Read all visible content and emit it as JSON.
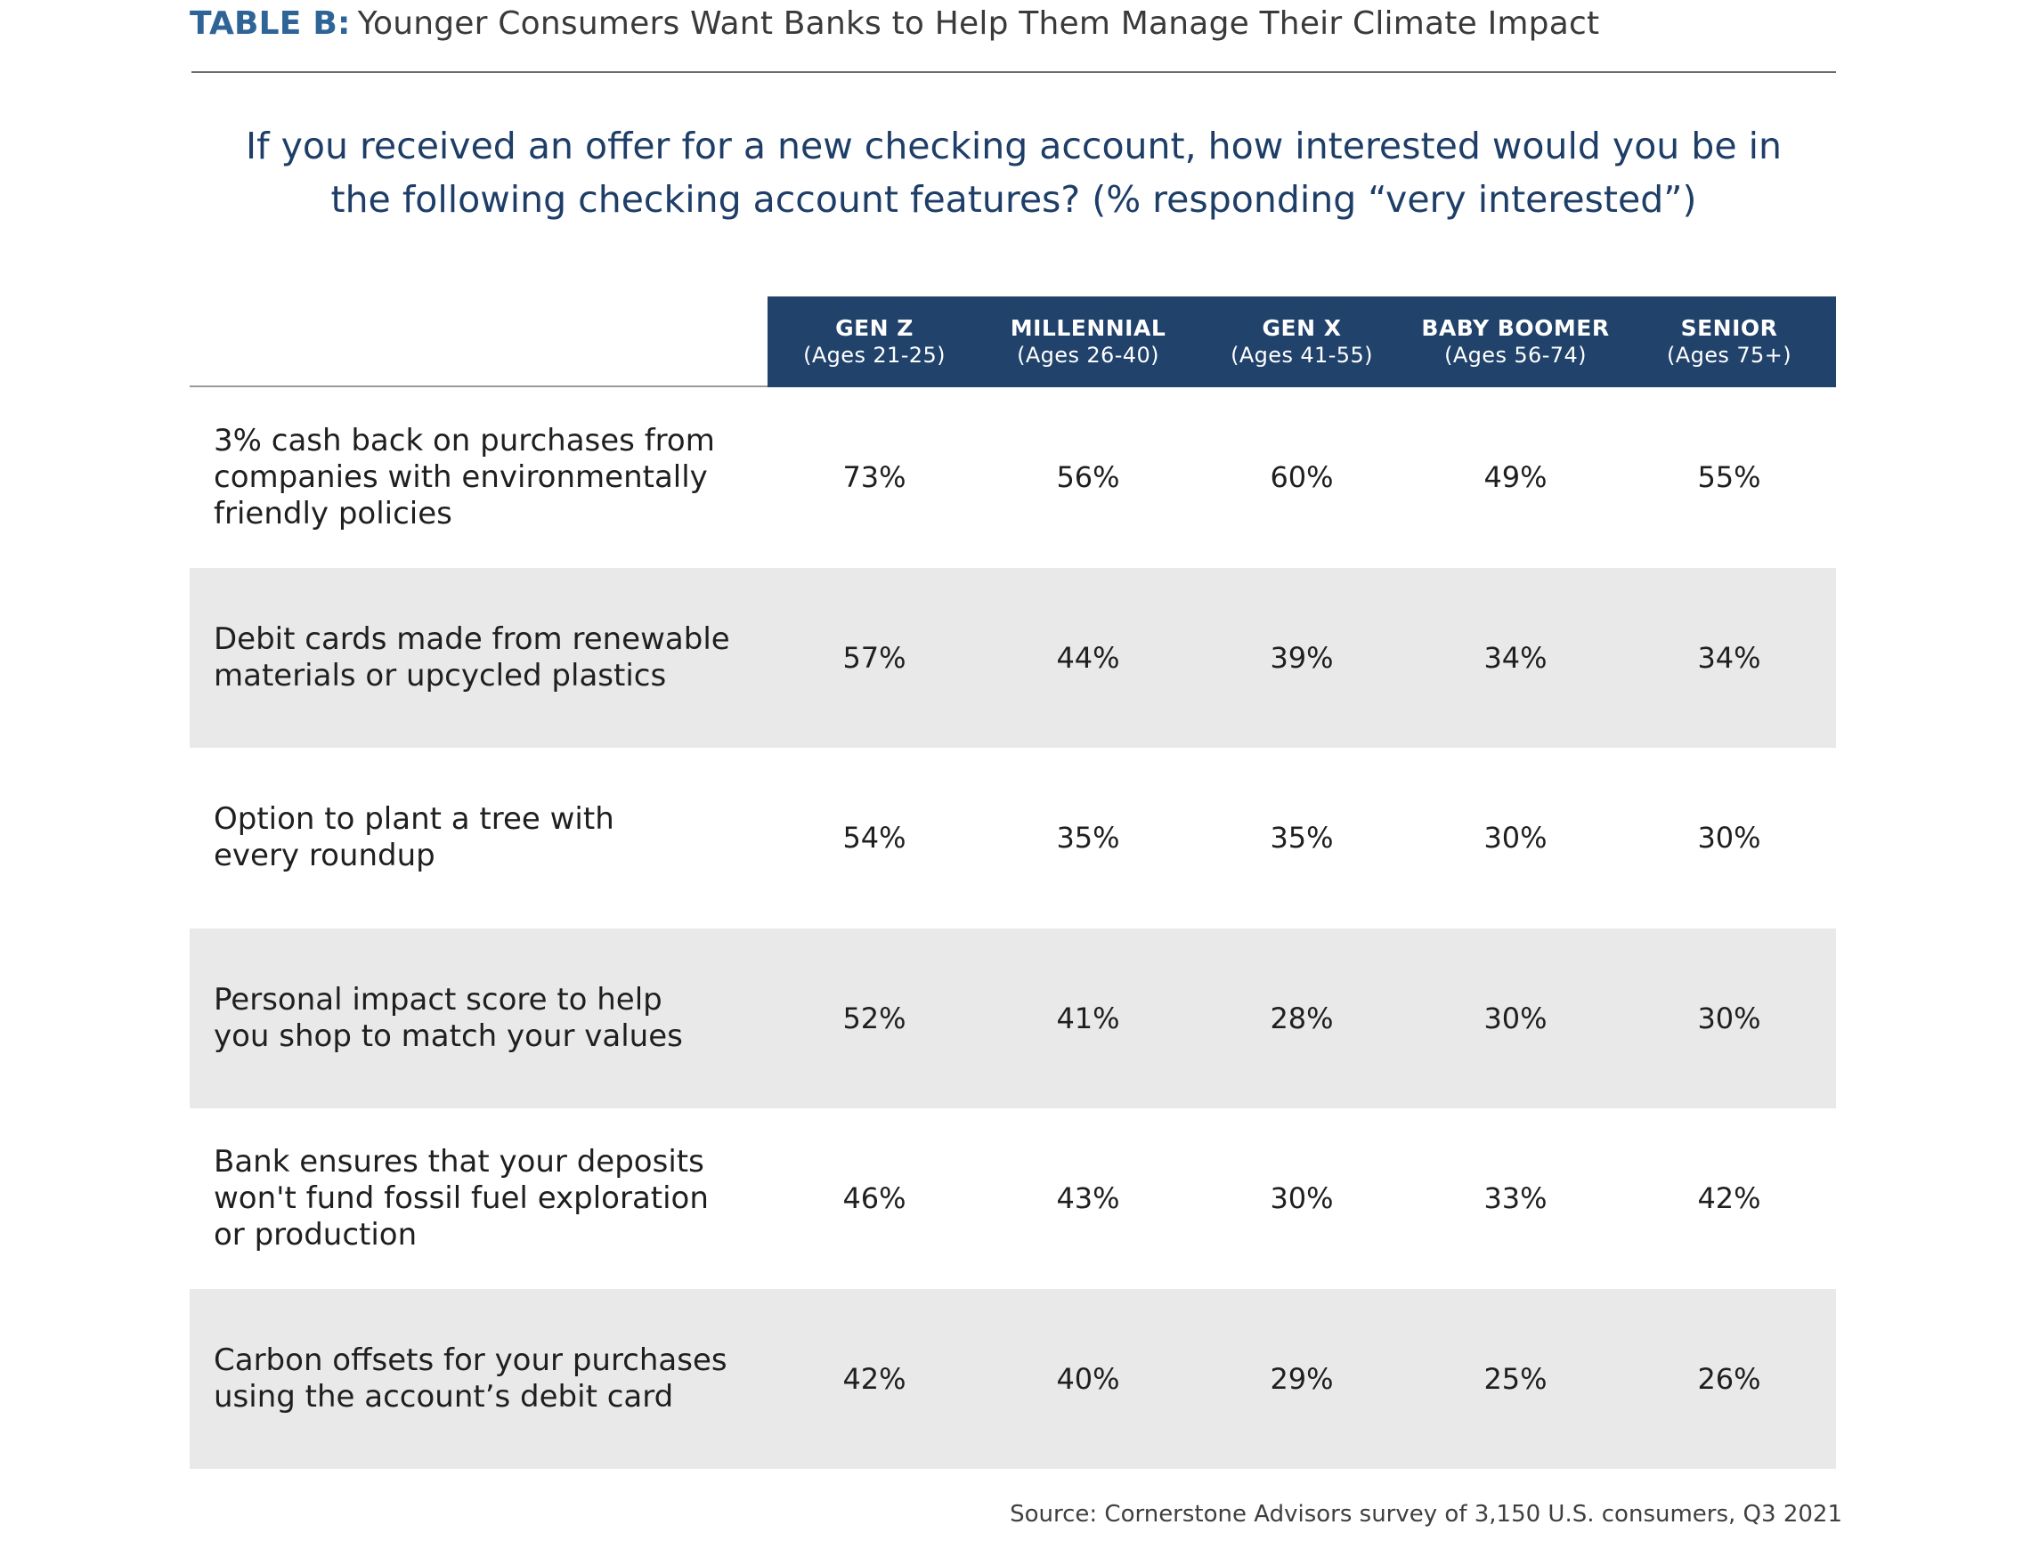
{
  "table_label": "TABLE B:",
  "table_title": "Younger Consumers Want Banks to Help Them Manage Their Climate Impact",
  "question": {
    "line1": "If you received an offer for a new checking account, how interested would you be in",
    "line2": "the following checking account features? (% responding “very interested”)"
  },
  "columns": [
    {
      "name": "GEN Z",
      "ages": "(Ages 21-25)"
    },
    {
      "name": "MILLENNIAL",
      "ages": "(Ages 26-40)"
    },
    {
      "name": "GEN X",
      "ages": "(Ages 41-55)"
    },
    {
      "name": "BABY BOOMER",
      "ages": "(Ages 56-74)"
    },
    {
      "name": "SENIOR",
      "ages": "(Ages 75+)"
    }
  ],
  "rows": [
    {
      "label": [
        "3% cash back on purchases from",
        "companies with environmentally",
        "friendly policies"
      ],
      "values": [
        "73%",
        "56%",
        "60%",
        "49%",
        "55%"
      ]
    },
    {
      "label": [
        "Debit cards made from renewable",
        "materials or upcycled plastics"
      ],
      "values": [
        "57%",
        "44%",
        "39%",
        "34%",
        "34%"
      ]
    },
    {
      "label": [
        "Option to plant a tree with",
        "every roundup"
      ],
      "values": [
        "54%",
        "35%",
        "35%",
        "30%",
        "30%"
      ]
    },
    {
      "label": [
        "Personal impact score to help",
        "you shop to match your values"
      ],
      "values": [
        "52%",
        "41%",
        "28%",
        "30%",
        "30%"
      ]
    },
    {
      "label": [
        "Bank ensures that your deposits",
        "won't fund fossil fuel exploration",
        "or production"
      ],
      "values": [
        "46%",
        "43%",
        "30%",
        "33%",
        "42%"
      ]
    },
    {
      "label": [
        "Carbon offsets for your purchases",
        "using the account’s debit card"
      ],
      "values": [
        "42%",
        "40%",
        "29%",
        "25%",
        "26%"
      ]
    }
  ],
  "source": "Source: Cornerstone Advisors survey of 3,150 U.S. consumers, Q3 2021",
  "colors": {
    "title_label": "#2e6496",
    "question": "#1e3e68",
    "header_bg": "#20426b",
    "shaded_row": "#e8e9e8"
  }
}
